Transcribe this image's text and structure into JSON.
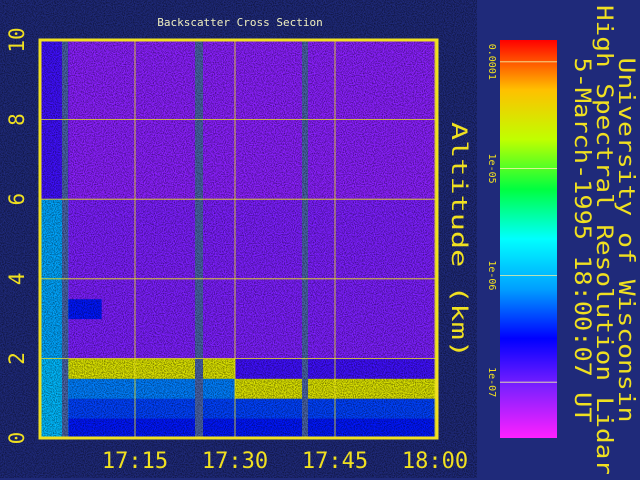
{
  "chart_data": {
    "type": "heatmap",
    "title": "Backscatter Cross Section",
    "ylabel": "Altitude (km)",
    "annotations": [
      "University of Wisconsin",
      "High Spectral Resolution Lidar",
      "5-March-1995 18:00:07 UT"
    ],
    "xlim": [
      1020.75,
      1080.3
    ],
    "xticks": [
      {
        "value": 1035,
        "label": "17:15"
      },
      {
        "value": 1050,
        "label": "17:30"
      },
      {
        "value": 1065,
        "label": "17:45"
      },
      {
        "value": 1080,
        "label": "18:00"
      }
    ],
    "ylim": [
      0,
      10
    ],
    "yticks": [
      0,
      2,
      4,
      6,
      8,
      10
    ],
    "grid": true,
    "x_bins": [
      1020.75,
      1025,
      1030,
      1035,
      1040,
      1045,
      1050,
      1055,
      1060,
      1065,
      1070,
      1075,
      1080.3
    ],
    "y_bins": [
      0,
      0.5,
      1,
      1.5,
      2,
      2.5,
      3,
      3.5,
      4,
      4.5,
      5,
      5.5,
      6,
      6.5,
      7,
      7.5,
      8,
      8.5,
      9,
      9.5,
      10
    ],
    "values": [
      [
        1e-06,
        3e-07,
        3e-07,
        3e-07,
        3e-07,
        3e-07,
        3e-07,
        3e-07,
        3e-07,
        3e-07,
        3e-07,
        3e-07
      ],
      [
        1e-06,
        4e-07,
        4e-07,
        4e-07,
        4e-07,
        4e-07,
        4e-07,
        4e-07,
        4e-07,
        4e-07,
        4e-07,
        4e-07
      ],
      [
        1e-06,
        6e-07,
        6e-07,
        6e-07,
        6e-07,
        6e-07,
        3e-05,
        3e-05,
        3e-05,
        3e-05,
        3e-05,
        3e-05
      ],
      [
        1e-06,
        3e-05,
        3e-05,
        3e-05,
        3e-05,
        3e-05,
        1.5e-07,
        1.5e-07,
        1.5e-07,
        1.5e-07,
        1.5e-07,
        1.5e-07
      ],
      [
        8e-07,
        9e-08,
        9e-08,
        9e-08,
        9e-08,
        9e-08,
        9e-08,
        9e-08,
        9e-08,
        9e-08,
        9e-08,
        9e-08
      ],
      [
        8e-07,
        9e-08,
        9e-08,
        9e-08,
        9e-08,
        9e-08,
        9e-08,
        9e-08,
        9e-08,
        9e-08,
        9e-08,
        9e-08
      ],
      [
        8e-07,
        3e-07,
        9e-08,
        9e-08,
        9e-08,
        9e-08,
        9e-08,
        9e-08,
        9e-08,
        9e-08,
        9e-08,
        9e-08
      ],
      [
        8e-07,
        9e-08,
        9e-08,
        9e-08,
        9e-08,
        9e-08,
        9e-08,
        9e-08,
        9e-08,
        9e-08,
        9e-08,
        9e-08
      ],
      [
        8e-07,
        9e-08,
        9e-08,
        9e-08,
        9e-08,
        9e-08,
        9e-08,
        9e-08,
        9e-08,
        9e-08,
        9e-08,
        9e-08
      ],
      [
        8e-07,
        9e-08,
        9e-08,
        9e-08,
        9e-08,
        9e-08,
        9e-08,
        9e-08,
        9e-08,
        9e-08,
        9e-08,
        9e-08
      ],
      [
        8e-07,
        9e-08,
        9e-08,
        9e-08,
        9e-08,
        9e-08,
        9e-08,
        9e-08,
        9e-08,
        9e-08,
        9e-08,
        9e-08
      ],
      [
        8e-07,
        9e-08,
        9e-08,
        9e-08,
        9e-08,
        9e-08,
        9e-08,
        9e-08,
        9e-08,
        9e-08,
        9e-08,
        9e-08
      ],
      [
        1.5e-07,
        8e-08,
        8e-08,
        8e-08,
        8e-08,
        8e-08,
        8e-08,
        8e-08,
        8e-08,
        8e-08,
        8e-08,
        8e-08
      ],
      [
        1.5e-07,
        8e-08,
        8e-08,
        8e-08,
        8e-08,
        8e-08,
        8e-08,
        8e-08,
        8e-08,
        8e-08,
        8e-08,
        8e-08
      ],
      [
        1.5e-07,
        8e-08,
        8e-08,
        8e-08,
        8e-08,
        8e-08,
        8e-08,
        8e-08,
        8e-08,
        8e-08,
        8e-08,
        8e-08
      ],
      [
        1.5e-07,
        8e-08,
        8e-08,
        8e-08,
        8e-08,
        8e-08,
        8e-08,
        8e-08,
        8e-08,
        8e-08,
        8e-08,
        8e-08
      ],
      [
        1.5e-07,
        8e-08,
        8e-08,
        8e-08,
        8e-08,
        8e-08,
        8e-08,
        8e-08,
        8e-08,
        8e-08,
        8e-08,
        8e-08
      ],
      [
        1.5e-07,
        8e-08,
        8e-08,
        8e-08,
        8e-08,
        8e-08,
        8e-08,
        8e-08,
        8e-08,
        8e-08,
        8e-08,
        8e-08
      ],
      [
        1.5e-07,
        8e-08,
        8e-08,
        8e-08,
        8e-08,
        8e-08,
        8e-08,
        8e-08,
        8e-08,
        8e-08,
        8e-08,
        8e-08
      ],
      [
        1.5e-07,
        8e-08,
        8e-08,
        8e-08,
        8e-08,
        8e-08,
        8e-08,
        8e-08,
        8e-08,
        8e-08,
        8e-08,
        8e-08
      ]
    ],
    "gaps": [
      [
        1024.05,
        1024.95
      ],
      [
        1044.0,
        1045.2
      ],
      [
        1060.05,
        1060.95
      ]
    ],
    "gap_color": "#4a64a8",
    "colorbar": {
      "lim": [
        3e-08,
        0.00016
      ],
      "log": true,
      "ticks": [
        {
          "value": 1e-07,
          "label": "1e-07"
        },
        {
          "value": 1e-06,
          "label": "1e-06"
        },
        {
          "value": 1e-05,
          "label": "1e-05"
        },
        {
          "value": 0.0001,
          "label": "0.0001"
        }
      ]
    },
    "colormap": [
      "#ff20ff",
      "#8020ff",
      "#0000ff",
      "#00a0ff",
      "#00ffff",
      "#00ff40",
      "#c0ff00",
      "#ffc000",
      "#ff0000"
    ]
  }
}
